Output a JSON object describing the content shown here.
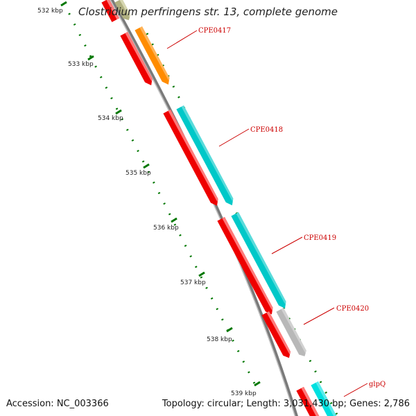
{
  "title": "Clostridium perfringens str. 13, complete genome",
  "footer": {
    "accession": "Accession: NC_003366",
    "summary": "Topology: circular; Length: 3,031,430 bp; Genes: 2,786"
  },
  "ruler": {
    "ticks": [
      "532 kbp",
      "533 kbp",
      "534 kbp",
      "535 kbp",
      "536 kbp",
      "537 kbp",
      "538 kbp",
      "539 kbp"
    ]
  },
  "genes": [
    {
      "label": "CPE0417",
      "color": "#ff8c00"
    },
    {
      "label": "CPE0418",
      "color": "#00c8c8"
    },
    {
      "label": "CPE0419",
      "color": "#00c8c8"
    },
    {
      "label": "CPE0420",
      "color": "#b8b8b8"
    },
    {
      "label": "glpQ",
      "color": "#00e0e0"
    }
  ],
  "colors": {
    "cds_track": "#ee0000",
    "backbone": "#888888",
    "ruler_dots": "#007700",
    "label_text": "#cc0000"
  }
}
